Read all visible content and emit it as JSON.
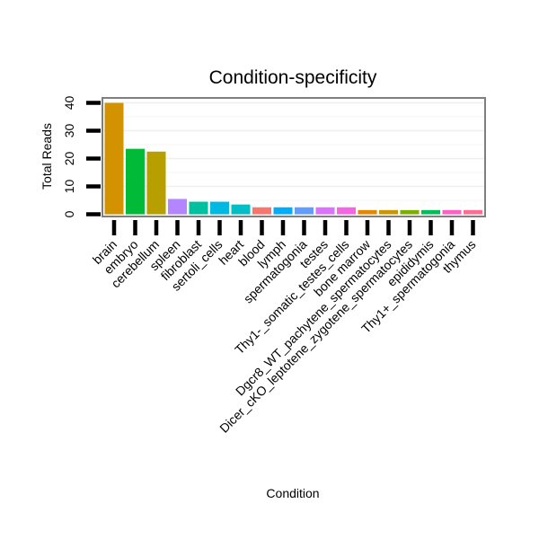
{
  "chart_data": {
    "type": "bar",
    "title": "Condition-specificity",
    "xlabel": "Condition",
    "ylabel": "Total Reads",
    "ylim": [
      0,
      42
    ],
    "yticks": [
      0,
      10,
      20,
      30,
      40
    ],
    "grid": true,
    "legend": "none",
    "categories": [
      "brain",
      "embryo",
      "cerebellum",
      "spleen",
      "fibroblast",
      "sertoli_cells",
      "heart",
      "blood",
      "lymph",
      "spermatogonia",
      "testes",
      "Thy1-_somatic_testes_cells",
      "bone marrow",
      "Dgcr8_WT_pachytene_spermatocytes",
      "Dicer_cKO_leptotene_zygotene_spermatocytes",
      "epididymis",
      "Thy1+_spermatogonia",
      "thymus"
    ],
    "values": [
      40,
      23.5,
      22.5,
      5.5,
      4.5,
      4.5,
      3.5,
      2.5,
      2.5,
      2.5,
      2.5,
      2.5,
      1.5,
      1.5,
      1.5,
      1.5,
      1.5,
      1.5
    ],
    "colors": [
      "#D39200",
      "#00BA38",
      "#B79F00",
      "#B385FF",
      "#00C19F",
      "#00B9E3",
      "#00BFC4",
      "#F8766D",
      "#00ADFA",
      "#619CFF",
      "#DB72FB",
      "#F564E3",
      "#E58700",
      "#C99800",
      "#7CAE00",
      "#00BC59",
      "#FF61C3",
      "#FF6C91"
    ]
  }
}
